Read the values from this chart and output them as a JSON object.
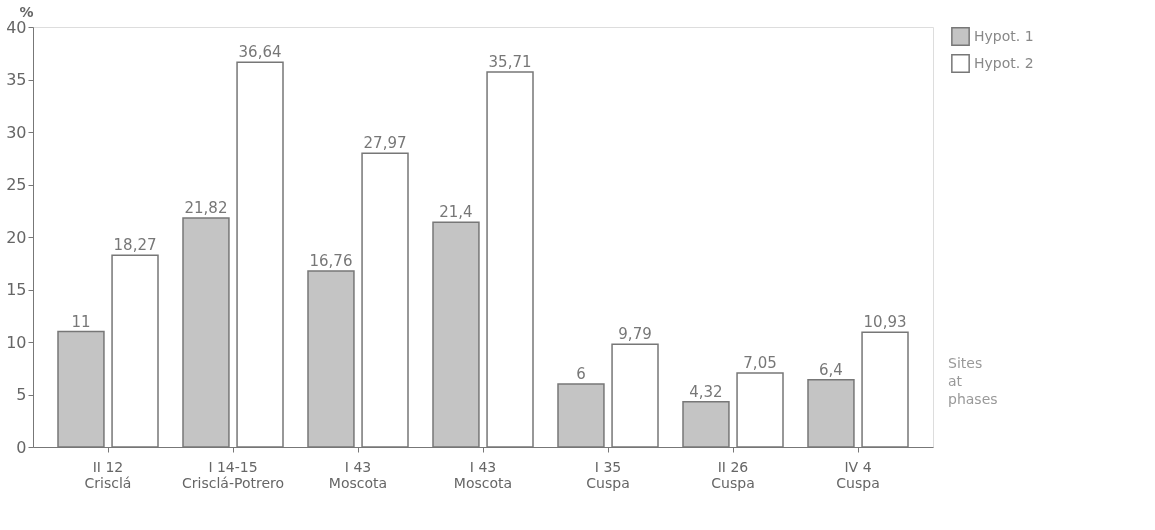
{
  "chart_data": {
    "type": "bar",
    "ylabel": "%",
    "categories": [
      "II 12\nCrisclá",
      "I 14-15\nCrisclá-Potrero",
      "I 43\nMoscota",
      "I 43\nMoscota",
      "I 35\nCuspa",
      "II 26\nCuspa",
      "IV 4\nCuspa"
    ],
    "series": [
      {
        "name": "Hypot. 1",
        "color": "#c4c4c4",
        "values": [
          11,
          21.82,
          16.76,
          21.4,
          6,
          4.32,
          6.4
        ],
        "value_labels": [
          "11",
          "21,82",
          "16,76",
          "21,4",
          "6",
          "4,32",
          "6,4"
        ]
      },
      {
        "name": "Hypot. 2",
        "color": "#ffffff",
        "values": [
          18.27,
          36.64,
          27.97,
          35.71,
          9.79,
          7.05,
          10.93
        ],
        "value_labels": [
          "18,27",
          "36,64",
          "27,97",
          "35,71",
          "9,79",
          "7,05",
          "10,93"
        ]
      }
    ],
    "ylim": [
      0,
      40
    ],
    "yticks": [
      0,
      5,
      10,
      15,
      20,
      25,
      30,
      35,
      40
    ],
    "grid": false,
    "legend": "right",
    "annotations": [
      "Sites at phases"
    ]
  }
}
